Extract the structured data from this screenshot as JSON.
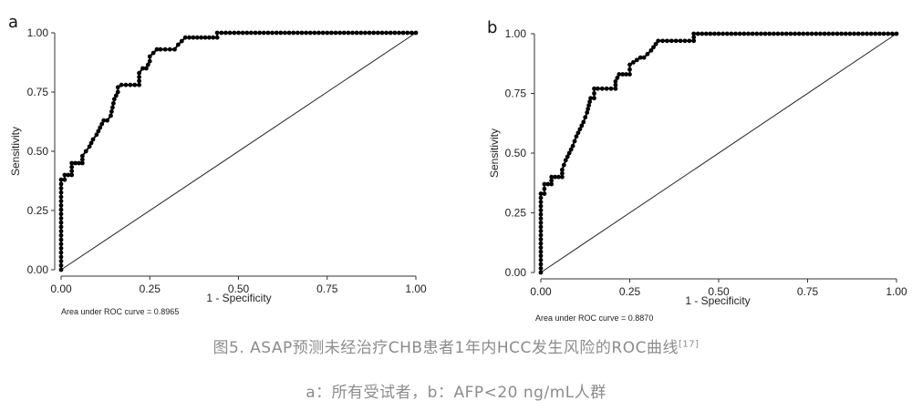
{
  "chart_data": [
    {
      "type": "line",
      "panel": "a",
      "ylabel": "Sensitivity",
      "xlabel": "1 - Specificity",
      "xlim": [
        0,
        1
      ],
      "ylim": [
        0,
        1
      ],
      "xticks": [
        "0.00",
        "0.25",
        "0.50",
        "0.75",
        "1.00"
      ],
      "yticks": [
        "0.00",
        "0.25",
        "0.50",
        "0.75",
        "1.00"
      ],
      "annotation": "Area under ROC curve = 0.8965",
      "grid": false,
      "reference_line": true,
      "x": [
        0,
        0,
        0.01,
        0.01,
        0.03,
        0.03,
        0.06,
        0.06,
        0.07,
        0.08,
        0.09,
        0.1,
        0.11,
        0.12,
        0.13,
        0.14,
        0.15,
        0.16,
        0.16,
        0.17,
        0.22,
        0.22,
        0.23,
        0.24,
        0.25,
        0.25,
        0.27,
        0.28,
        0.32,
        0.33,
        0.35,
        0.44,
        0.44,
        0.5,
        0.75,
        1.0
      ],
      "y": [
        0,
        0.38,
        0.38,
        0.4,
        0.4,
        0.45,
        0.45,
        0.48,
        0.5,
        0.52,
        0.55,
        0.57,
        0.6,
        0.63,
        0.63,
        0.65,
        0.72,
        0.75,
        0.77,
        0.78,
        0.78,
        0.83,
        0.85,
        0.85,
        0.88,
        0.9,
        0.93,
        0.93,
        0.93,
        0.95,
        0.98,
        0.98,
        1.0,
        1.0,
        1.0,
        1.0
      ]
    },
    {
      "type": "line",
      "panel": "b",
      "ylabel": "Sensitivity",
      "xlabel": "1 - Specificity",
      "xlim": [
        0,
        1
      ],
      "ylim": [
        0,
        1
      ],
      "xticks": [
        "0.00",
        "0.25",
        "0.50",
        "0.75",
        "1.00"
      ],
      "yticks": [
        "0.00",
        "0.25",
        "0.50",
        "0.75",
        "1.00"
      ],
      "annotation": "Area under ROC curve = 0.8870",
      "grid": false,
      "reference_line": true,
      "x": [
        0,
        0,
        0.01,
        0.01,
        0.03,
        0.03,
        0.06,
        0.06,
        0.07,
        0.08,
        0.09,
        0.1,
        0.11,
        0.12,
        0.13,
        0.14,
        0.15,
        0.15,
        0.16,
        0.21,
        0.21,
        0.22,
        0.25,
        0.25,
        0.28,
        0.29,
        0.31,
        0.33,
        0.43,
        0.43,
        0.5,
        0.75,
        1.0
      ],
      "y": [
        0,
        0.33,
        0.33,
        0.37,
        0.37,
        0.4,
        0.4,
        0.43,
        0.47,
        0.5,
        0.53,
        0.57,
        0.6,
        0.63,
        0.67,
        0.73,
        0.73,
        0.77,
        0.77,
        0.77,
        0.8,
        0.83,
        0.83,
        0.87,
        0.9,
        0.9,
        0.93,
        0.97,
        0.97,
        1.0,
        1.0,
        1.0,
        1.0
      ]
    }
  ],
  "panels": {
    "a": {
      "letter": "a"
    },
    "b": {
      "letter": "b"
    }
  },
  "caption": {
    "title": "图5. ASAP预测未经治疗CHB患者1年内HCC发生风险的ROC曲线",
    "reference": "[17]",
    "subtitle": "a：所有受试者，b：AFP<20 ng/mL人群"
  }
}
